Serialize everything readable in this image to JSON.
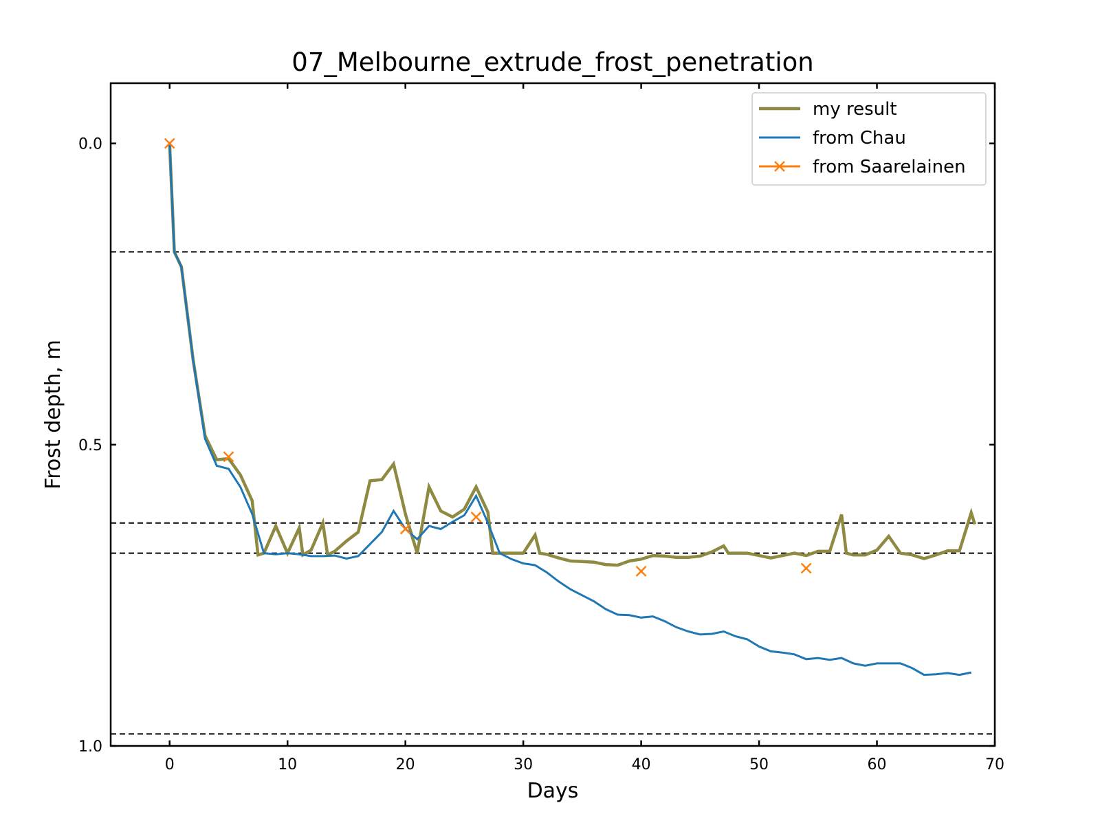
{
  "chart_data": {
    "type": "line",
    "title": "07_Melbourne_extrude_frost_penetration",
    "xlabel": "Days",
    "ylabel": "Frost depth, m",
    "xlim": [
      -5,
      70
    ],
    "ylim": [
      1.0,
      -0.1
    ],
    "y_inverted": true,
    "x_ticks": [
      "0",
      "10",
      "20",
      "30",
      "40",
      "50",
      "60",
      "70"
    ],
    "y_ticks": [
      "0.0",
      "0.5",
      "1.0"
    ],
    "grid": false,
    "legend_position": "top-right",
    "reference_lines_y": [
      0.18,
      0.63,
      0.68,
      0.98
    ],
    "series": [
      {
        "name": "my result",
        "color": "#8f8a42",
        "marker": "none",
        "x": [
          0,
          0.4,
          1,
          2,
          3,
          4,
          5,
          6,
          7,
          7.5,
          8,
          9,
          10,
          11,
          11.3,
          12,
          13,
          13.4,
          14,
          15,
          16,
          17,
          18,
          19,
          20,
          21,
          22,
          23,
          24,
          25,
          26,
          27,
          27.4,
          28,
          30,
          31,
          31.4,
          32,
          33,
          34,
          35,
          36,
          37,
          38,
          39,
          40,
          41,
          42,
          43,
          44,
          45,
          46,
          47,
          47.4,
          48,
          49,
          50,
          51,
          52,
          53,
          54,
          55,
          56,
          57,
          57.4,
          58,
          59,
          60,
          61,
          62,
          63,
          64,
          65,
          66,
          67,
          68,
          68.3
        ],
        "y": [
          0.0,
          0.18,
          0.205,
          0.36,
          0.485,
          0.525,
          0.523,
          0.55,
          0.593,
          0.683,
          0.68,
          0.635,
          0.68,
          0.638,
          0.683,
          0.675,
          0.63,
          0.683,
          0.677,
          0.66,
          0.645,
          0.56,
          0.558,
          0.532,
          0.615,
          0.68,
          0.57,
          0.61,
          0.62,
          0.607,
          0.57,
          0.612,
          0.68,
          0.68,
          0.68,
          0.65,
          0.68,
          0.682,
          0.688,
          0.693,
          0.694,
          0.695,
          0.699,
          0.7,
          0.693,
          0.69,
          0.684,
          0.685,
          0.687,
          0.687,
          0.685,
          0.678,
          0.668,
          0.68,
          0.68,
          0.68,
          0.684,
          0.688,
          0.684,
          0.68,
          0.684,
          0.677,
          0.677,
          0.616,
          0.68,
          0.683,
          0.683,
          0.675,
          0.652,
          0.68,
          0.683,
          0.689,
          0.683,
          0.676,
          0.676,
          0.613,
          0.632
        ]
      },
      {
        "name": "from Chau",
        "color": "#1f77b4",
        "marker": "none",
        "x": [
          0,
          0.4,
          1,
          2,
          3,
          4,
          5,
          6,
          7,
          8,
          9,
          10,
          11,
          12,
          13,
          14,
          15,
          16,
          17,
          18,
          19,
          20,
          21,
          22,
          23,
          24,
          25,
          26,
          27,
          28,
          29,
          30,
          31,
          32,
          33,
          34,
          35,
          36,
          37,
          38,
          39,
          40,
          41,
          42,
          43,
          44,
          45,
          46,
          47,
          48,
          49,
          50,
          51,
          52,
          53,
          54,
          55,
          56,
          57,
          58,
          59,
          60,
          61,
          62,
          63,
          64,
          65,
          66,
          67,
          68
        ],
        "y": [
          0.0,
          0.18,
          0.205,
          0.36,
          0.49,
          0.535,
          0.54,
          0.57,
          0.615,
          0.68,
          0.682,
          0.68,
          0.682,
          0.685,
          0.685,
          0.684,
          0.689,
          0.685,
          0.665,
          0.645,
          0.61,
          0.64,
          0.657,
          0.635,
          0.64,
          0.628,
          0.617,
          0.585,
          0.63,
          0.68,
          0.69,
          0.697,
          0.7,
          0.712,
          0.727,
          0.74,
          0.75,
          0.76,
          0.773,
          0.782,
          0.783,
          0.787,
          0.785,
          0.793,
          0.803,
          0.81,
          0.815,
          0.814,
          0.81,
          0.818,
          0.823,
          0.835,
          0.843,
          0.845,
          0.848,
          0.856,
          0.854,
          0.857,
          0.854,
          0.863,
          0.867,
          0.863,
          0.863,
          0.863,
          0.871,
          0.882,
          0.881,
          0.879,
          0.882,
          0.878
        ]
      },
      {
        "name": "from Saarelainen",
        "color": "#ff7f0e",
        "marker": "x",
        "line": "none",
        "x": [
          0,
          5,
          20,
          26,
          40,
          54
        ],
        "y": [
          0.0,
          0.52,
          0.64,
          0.62,
          0.71,
          0.705
        ]
      }
    ]
  }
}
